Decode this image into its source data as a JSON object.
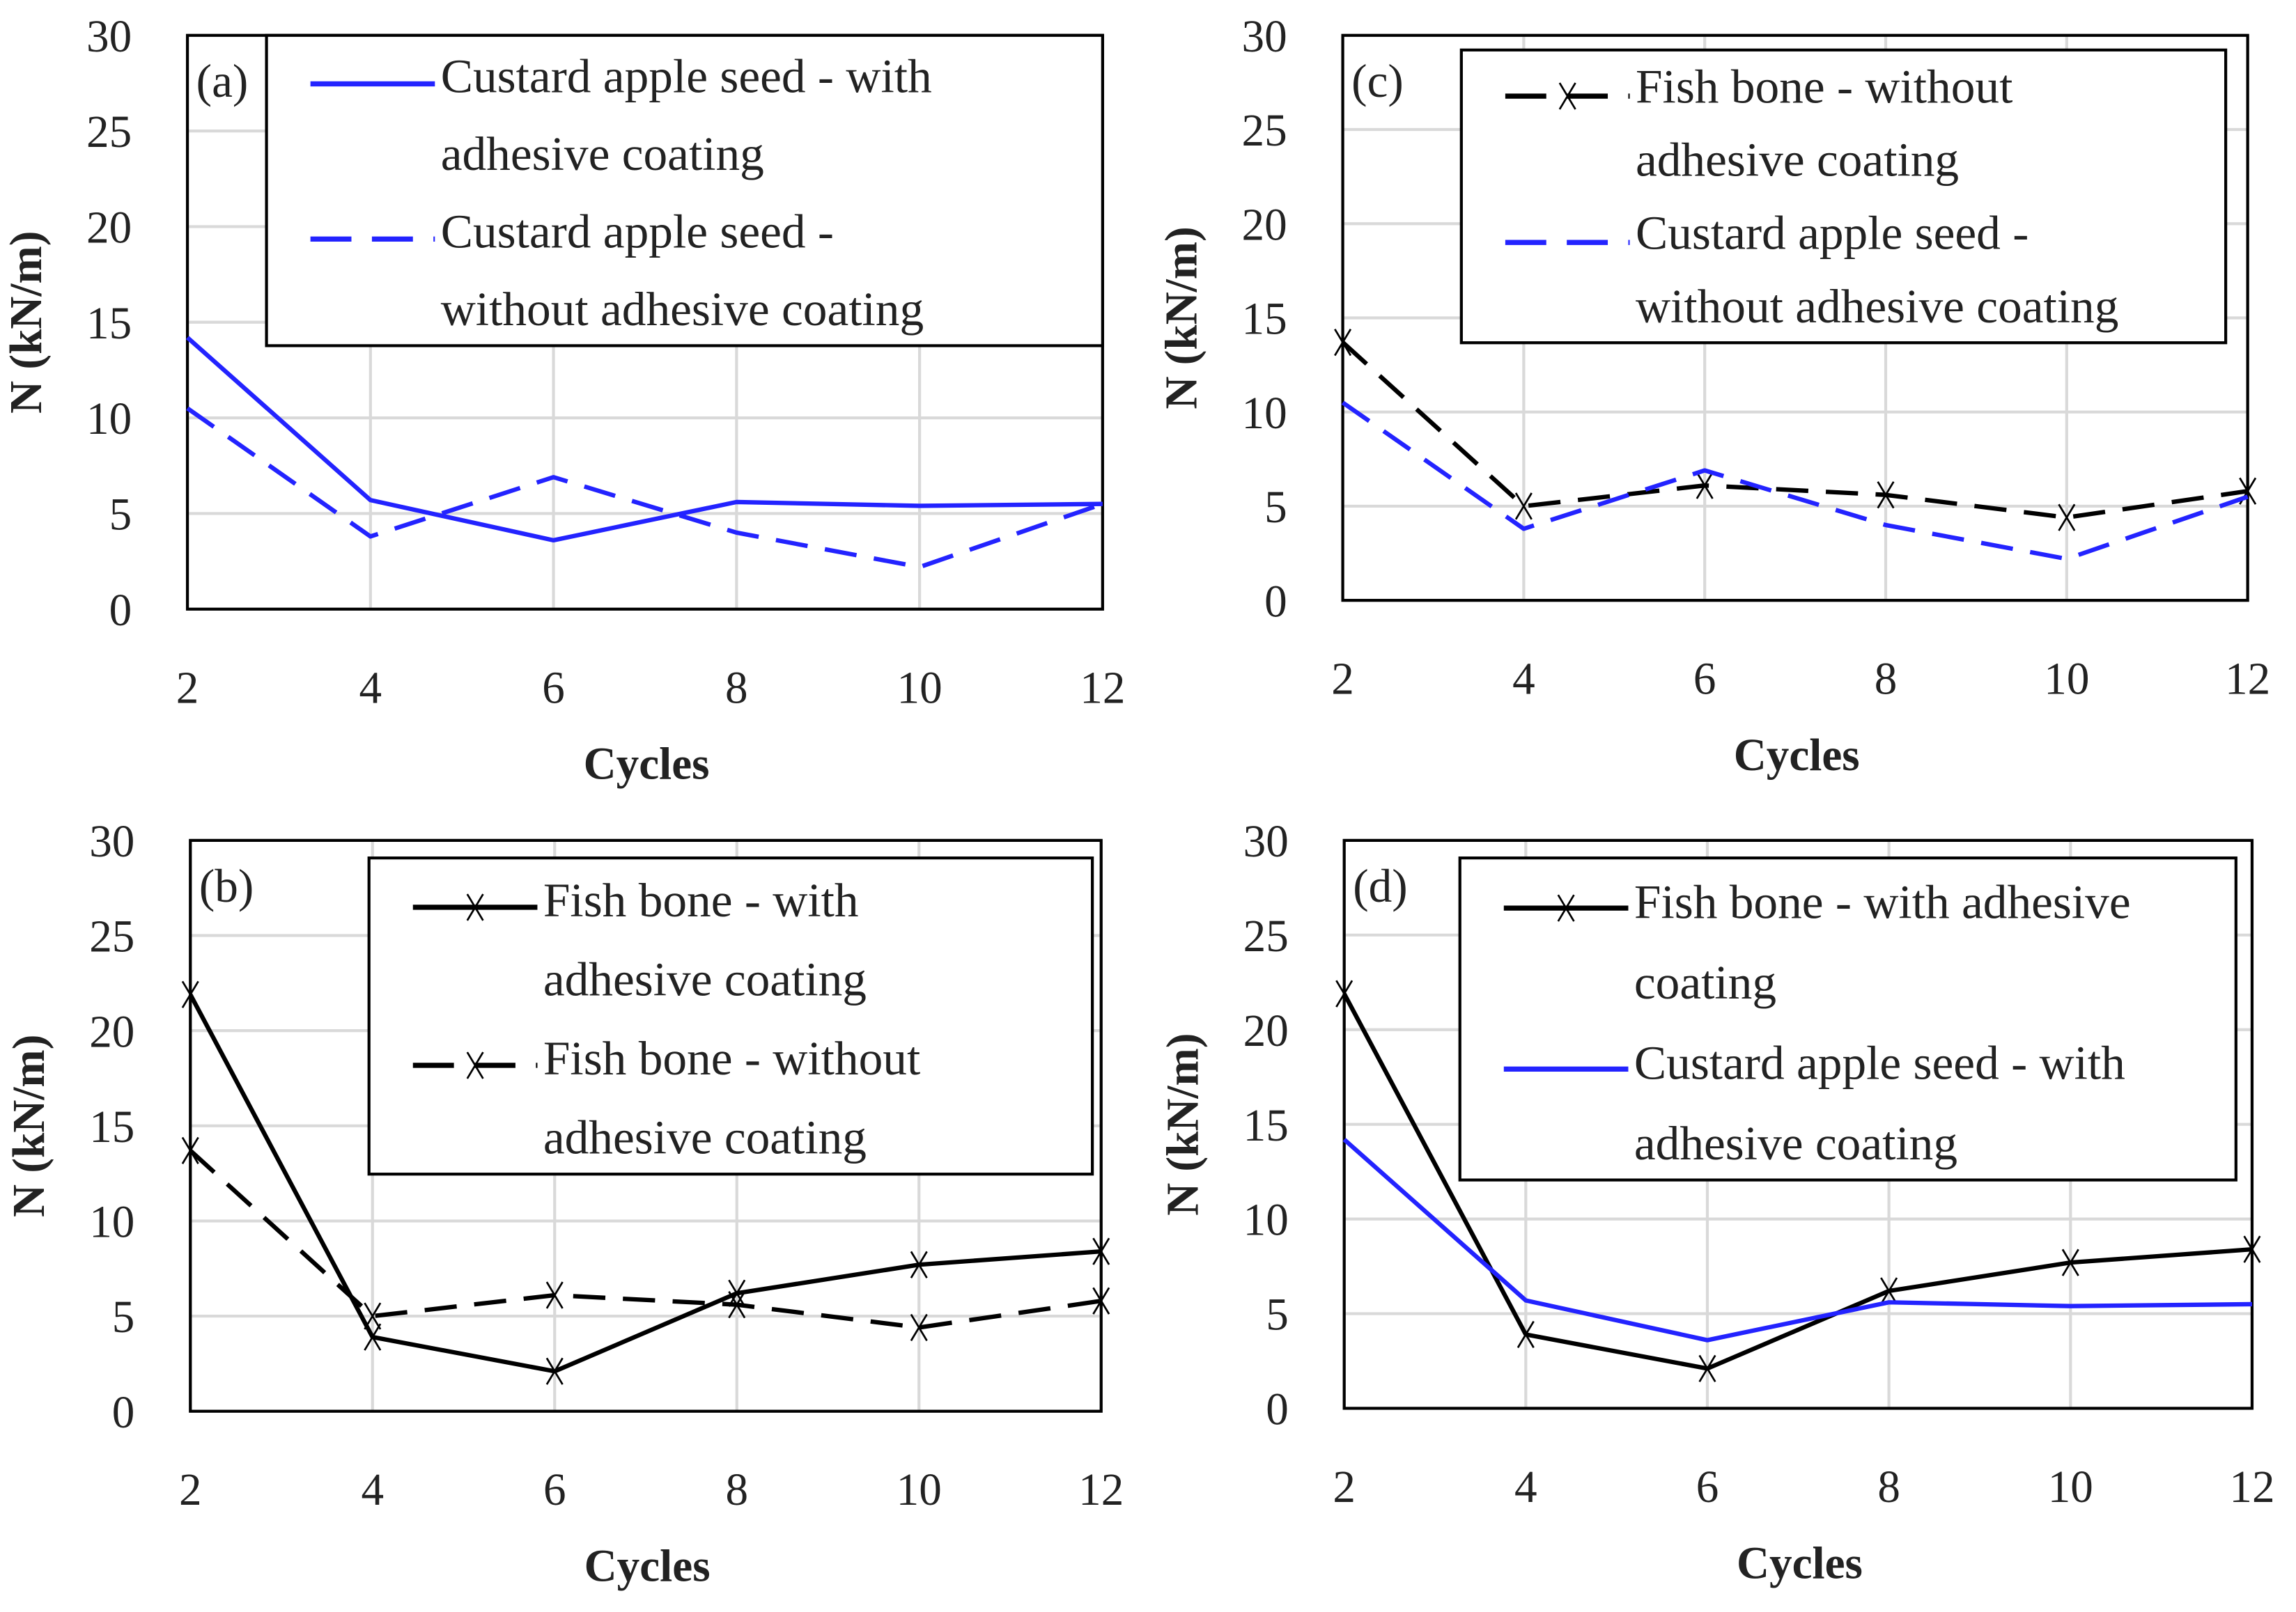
{
  "chart_data": [
    {
      "type": "line",
      "panel_label": "(a)",
      "xlabel": "Cycles",
      "ylabel": "N (kN/m)",
      "x": [
        2,
        4,
        6,
        8,
        10,
        12
      ],
      "xticks": [
        "2",
        "4",
        "6",
        "8",
        "10",
        "12"
      ],
      "yticks": [
        "0",
        "5",
        "10",
        "15",
        "20",
        "25",
        "30"
      ],
      "ylim": [
        0,
        30
      ],
      "grid": true,
      "legend_position": "top-right",
      "series": [
        {
          "name": "Custard apple seed - with adhesive coating",
          "legend_lines": [
            "Custard apple seed - with",
            "adhesive coating"
          ],
          "color": "#2323ff",
          "style": "solid",
          "marker": "none",
          "values": [
            14.2,
            5.7,
            3.6,
            5.6,
            5.4,
            5.5
          ]
        },
        {
          "name": "Custard apple seed - without adhesive coating",
          "legend_lines": [
            "Custard apple seed -",
            "without adhesive coating"
          ],
          "color": "#2323ff",
          "style": "dashed",
          "marker": "none",
          "values": [
            10.5,
            3.8,
            6.9,
            4.0,
            2.2,
            5.5
          ]
        }
      ]
    },
    {
      "type": "line",
      "panel_label": "(b)",
      "xlabel": "Cycles",
      "ylabel": "N (kN/m)",
      "x": [
        2,
        4,
        6,
        8,
        10,
        12
      ],
      "xticks": [
        "2",
        "4",
        "6",
        "8",
        "10",
        "12"
      ],
      "yticks": [
        "0",
        "5",
        "10",
        "15",
        "20",
        "25",
        "30"
      ],
      "ylim": [
        0,
        30
      ],
      "grid": true,
      "legend_position": "top-right",
      "series": [
        {
          "name": "Fish bone - with adhesive coating",
          "legend_lines": [
            "Fish bone - with",
            "adhesive coating"
          ],
          "color": "#000000",
          "style": "solid",
          "marker": "x",
          "values": [
            21.9,
            3.9,
            2.1,
            6.2,
            7.7,
            8.4
          ]
        },
        {
          "name": "Fish bone - without adhesive coating",
          "legend_lines": [
            "Fish bone - without",
            "adhesive coating"
          ],
          "color": "#000000",
          "style": "dashed",
          "marker": "x",
          "values": [
            13.7,
            5.0,
            6.1,
            5.6,
            4.4,
            5.8
          ]
        }
      ]
    },
    {
      "type": "line",
      "panel_label": "(c)",
      "xlabel": "Cycles",
      "ylabel": "N (kN/m)",
      "x": [
        2,
        4,
        6,
        8,
        10,
        12
      ],
      "xticks": [
        "2",
        "4",
        "6",
        "8",
        "10",
        "12"
      ],
      "yticks": [
        "0",
        "5",
        "10",
        "15",
        "20",
        "25",
        "30"
      ],
      "ylim": [
        0,
        30
      ],
      "grid": true,
      "legend_position": "top-right",
      "series": [
        {
          "name": "Fish bone - without adhesive coating",
          "legend_lines": [
            "Fish bone - without",
            "adhesive coating"
          ],
          "color": "#000000",
          "style": "dashed",
          "marker": "x",
          "values": [
            13.7,
            5.0,
            6.1,
            5.6,
            4.4,
            5.8
          ]
        },
        {
          "name": "Custard apple seed - without adhesive coating",
          "legend_lines": [
            "Custard apple seed -",
            "without adhesive coating"
          ],
          "color": "#2323ff",
          "style": "dashed",
          "marker": "none",
          "values": [
            10.5,
            3.8,
            6.9,
            4.0,
            2.2,
            5.5
          ]
        }
      ]
    },
    {
      "type": "line",
      "panel_label": "(d)",
      "xlabel": "Cycles",
      "ylabel": "N (kN/m)",
      "x": [
        2,
        4,
        6,
        8,
        10,
        12
      ],
      "xticks": [
        "2",
        "4",
        "6",
        "8",
        "10",
        "12"
      ],
      "yticks": [
        "0",
        "5",
        "10",
        "15",
        "20",
        "25",
        "30"
      ],
      "ylim": [
        0,
        30
      ],
      "grid": true,
      "legend_position": "top-right",
      "series": [
        {
          "name": "Fish bone - with adhesive coating",
          "legend_lines": [
            "Fish bone - with adhesive",
            "coating"
          ],
          "color": "#000000",
          "style": "solid",
          "marker": "x",
          "values": [
            21.9,
            3.9,
            2.1,
            6.2,
            7.7,
            8.4
          ]
        },
        {
          "name": "Custard apple seed - with adhesive coating",
          "legend_lines": [
            "Custard apple seed - with",
            "adhesive coating"
          ],
          "color": "#2323ff",
          "style": "solid",
          "marker": "none",
          "values": [
            14.2,
            5.7,
            3.6,
            5.6,
            5.4,
            5.5
          ]
        }
      ]
    }
  ]
}
